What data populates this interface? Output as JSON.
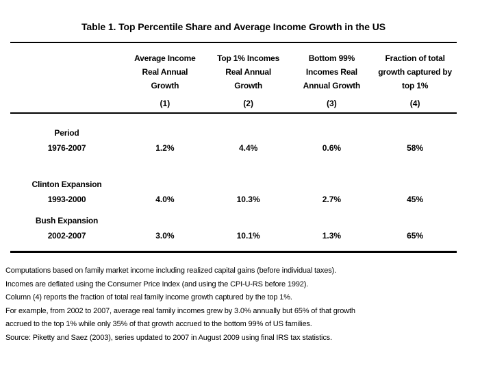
{
  "page": {
    "background": "#ffffff",
    "text_color": "#000000"
  },
  "table": {
    "title": "Table 1. Top Percentile Share and Average Income Growth in the US",
    "columns": [
      {
        "title": "Average Income\nReal Annual\nGrowth",
        "number": "(1)"
      },
      {
        "title": "Top 1% Incomes\nReal Annual\nGrowth",
        "number": "(2)"
      },
      {
        "title": "Bottom 99%\nIncomes Real\nAnnual Growth",
        "number": "(3)"
      },
      {
        "title": "Fraction of total\ngrowth captured by\ntop 1%",
        "number": "(4)"
      }
    ],
    "rows": [
      {
        "label": "Period",
        "period": "1976-2007",
        "values": [
          "1.2%",
          "4.4%",
          "0.6%",
          "58%"
        ]
      },
      {
        "label": "Clinton Expansion",
        "period": "1993-2000",
        "values": [
          "4.0%",
          "10.3%",
          "2.7%",
          "45%"
        ]
      },
      {
        "label": "Bush Expansion",
        "period": "2002-2007",
        "values": [
          "3.0%",
          "10.1%",
          "1.3%",
          "65%"
        ]
      }
    ]
  },
  "footnotes": [
    "Computations based on family market income including realized capital gains (before individual taxes).",
    "Incomes are deflated using the Consumer Price Index (and using the CPI-U-RS before 1992).",
    "Column (4) reports the fraction of total real family income growth captured by the top 1%.",
    "For example, from 2002 to 2007, average real family incomes grew by 3.0% annually but 65% of that growth",
    "accrued to the top 1% while only 35% of that growth accrued to the bottom 99% of US families.",
    "Source: Piketty and Saez (2003), series updated to 2007 in August 2009 using final IRS tax statistics."
  ]
}
